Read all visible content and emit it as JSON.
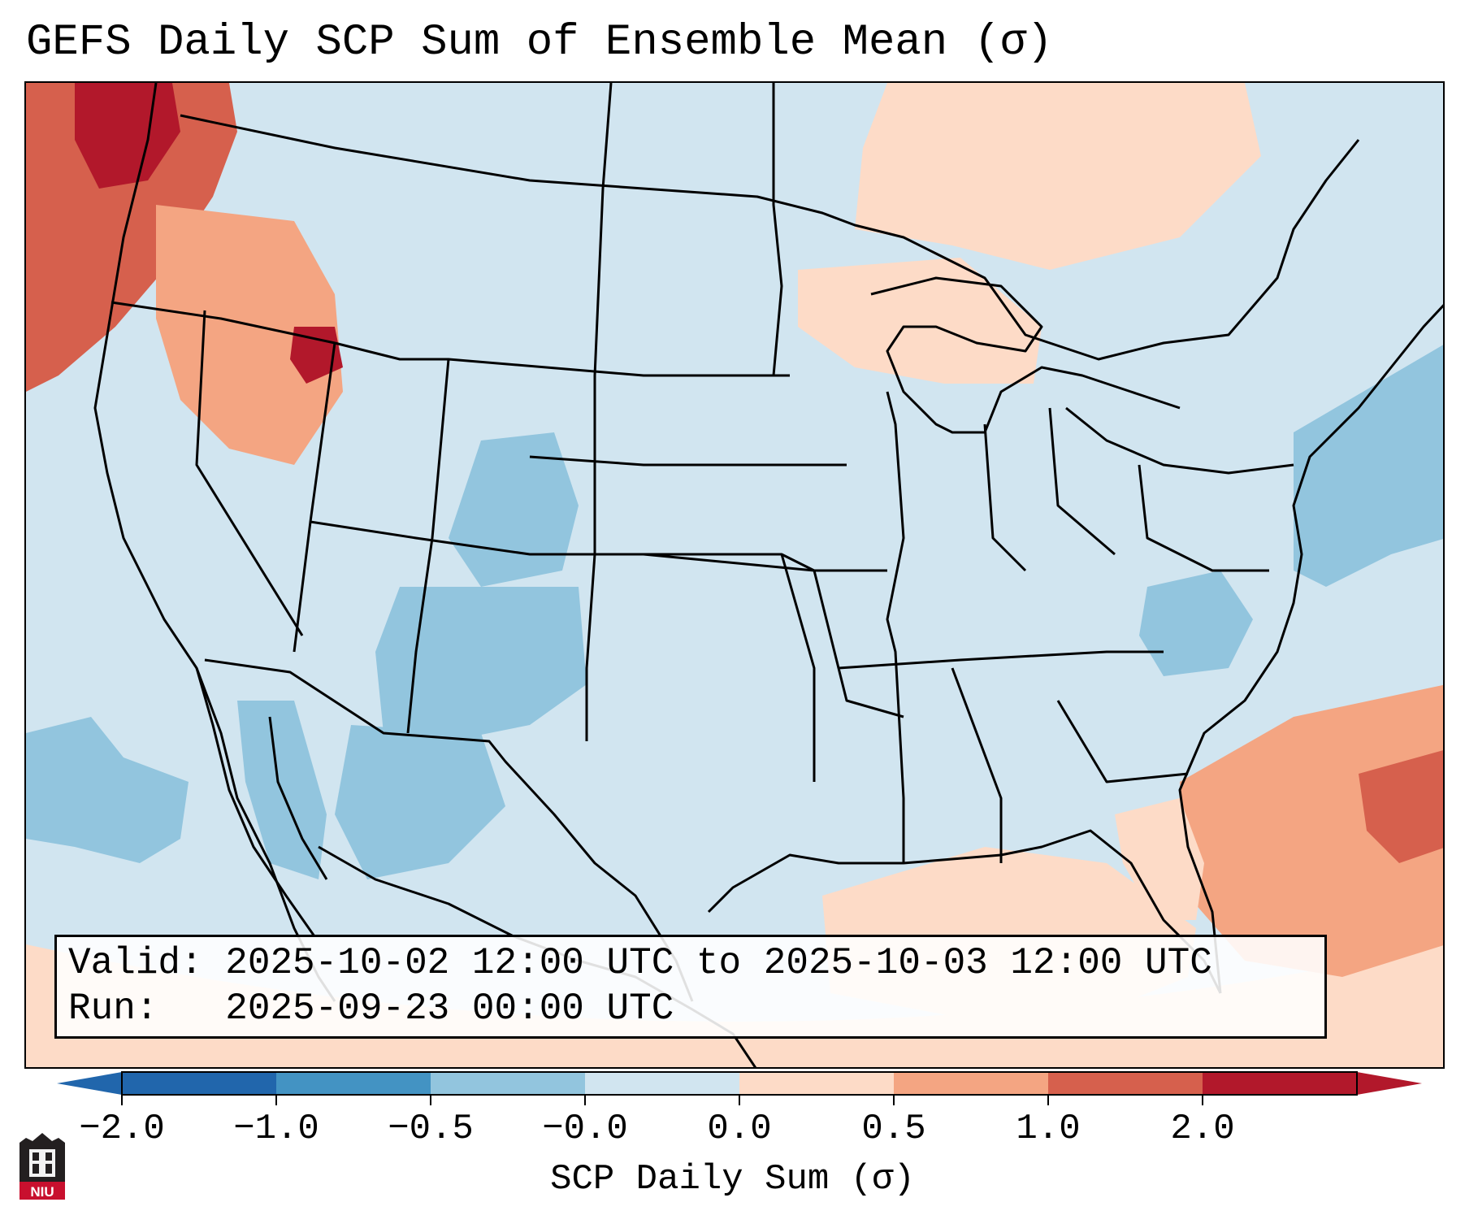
{
  "title": "GEFS Daily SCP Sum of Ensemble Mean (σ)",
  "info": {
    "valid_line": "Valid: 2025-10-02 12:00 UTC to 2025-10-03 12:00 UTC",
    "run_line": "Run:   2025-09-23 00:00 UTC"
  },
  "colorbar": {
    "label": "SCP Daily Sum (σ)",
    "tick_labels": [
      "−2.0",
      "−1.0",
      "−0.5",
      "−0.0",
      "0.0",
      "0.5",
      "1.0",
      "2.0"
    ],
    "bin_colors": [
      "#2166ac",
      "#4393c3",
      "#92c5de",
      "#d1e5f0",
      "#fddbc7",
      "#f4a582",
      "#d6604d",
      "#b2182b"
    ],
    "under_color": "#2166ac",
    "over_color": "#b2182b"
  },
  "logo": {
    "text": "NIU",
    "color": "#c8102e"
  },
  "map": {
    "background_color": "#d1e5f0",
    "edge_color": "#fddbc7",
    "areas": [
      {
        "name": "pacific-northwest-high",
        "color": "#d6604d"
      },
      {
        "name": "washington-max",
        "color": "#b2182b"
      },
      {
        "name": "idaho-max",
        "color": "#b2182b"
      },
      {
        "name": "northwest-moderate",
        "color": "#f4a582"
      },
      {
        "name": "canada-north",
        "color": "#fddbc7"
      },
      {
        "name": "great-lakes-light",
        "color": "#fddbc7"
      },
      {
        "name": "colorado-low",
        "color": "#92c5de"
      },
      {
        "name": "new-mexico-low",
        "color": "#92c5de"
      },
      {
        "name": "mexico-low",
        "color": "#92c5de"
      },
      {
        "name": "gulf-california-low",
        "color": "#92c5de"
      },
      {
        "name": "pacific-low",
        "color": "#92c5de"
      },
      {
        "name": "atlantic-low",
        "color": "#92c5de"
      },
      {
        "name": "virginia-low",
        "color": "#92c5de"
      },
      {
        "name": "gulf-of-mexico-light",
        "color": "#fddbc7"
      },
      {
        "name": "atlantic-high",
        "color": "#f4a582"
      },
      {
        "name": "atlantic-max",
        "color": "#d6604d"
      },
      {
        "name": "florida-light",
        "color": "#fddbc7"
      }
    ]
  }
}
